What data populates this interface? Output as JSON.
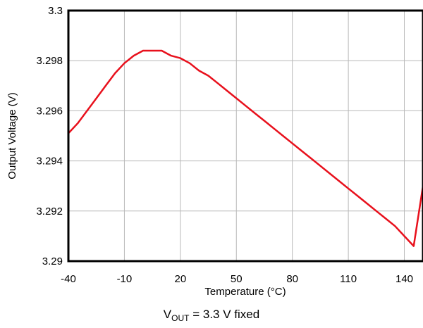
{
  "chart_data": {
    "type": "line",
    "xlabel": "Temperature (°C)",
    "ylabel": "Output Voltage (V)",
    "xlim": [
      -40,
      150
    ],
    "ylim": [
      3.29,
      3.3
    ],
    "x_ticks": [
      -40,
      -10,
      20,
      50,
      80,
      110,
      140
    ],
    "x_tick_labels": [
      "-40",
      "-10",
      "20",
      "50",
      "80",
      "110",
      "140"
    ],
    "y_ticks": [
      3.29,
      3.292,
      3.294,
      3.296,
      3.298,
      3.3
    ],
    "y_tick_labels": [
      "3.29",
      "3.292",
      "3.294",
      "3.296",
      "3.298",
      "3.3"
    ],
    "grid": true,
    "series": [
      {
        "color": "#e8101c",
        "x": [
          -40,
          -35,
          -30,
          -25,
          -20,
          -15,
          -10,
          -5,
          0,
          5,
          10,
          15,
          20,
          25,
          30,
          35,
          40,
          45,
          50,
          55,
          60,
          65,
          70,
          75,
          80,
          85,
          90,
          95,
          100,
          105,
          110,
          115,
          120,
          125,
          130,
          135,
          140,
          145,
          150
        ],
        "y": [
          3.2951,
          3.2955,
          3.296,
          3.2965,
          3.297,
          3.2975,
          3.2979,
          3.2982,
          3.2984,
          3.2984,
          3.2984,
          3.2982,
          3.2981,
          3.2979,
          3.2976,
          3.2974,
          3.2971,
          3.2968,
          3.2965,
          3.2962,
          3.2959,
          3.2956,
          3.2953,
          3.295,
          3.2947,
          3.2944,
          3.2941,
          3.2938,
          3.2935,
          3.2932,
          3.2929,
          3.2926,
          3.2923,
          3.292,
          3.2917,
          3.2914,
          3.291,
          3.2906,
          3.293
        ]
      }
    ]
  },
  "caption": {
    "prefix": "V",
    "subscript": "OUT",
    "suffix": " = 3.3 V fixed"
  }
}
